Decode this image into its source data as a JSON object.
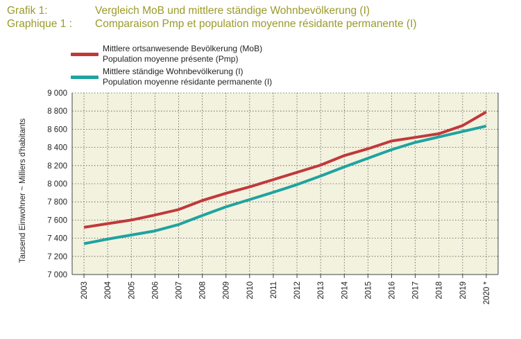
{
  "title": {
    "de_number": "Grafik 1:",
    "de_text": "Vergleich MoB und mittlere ständige Wohnbevölkerung (I)",
    "fr_number": "Graphique 1 :",
    "fr_text": "Comparaison Pmp et population moyenne résidante permanente (I)"
  },
  "chart_data": {
    "type": "line",
    "categories": [
      "2003",
      "2004",
      "2005",
      "2006",
      "2007",
      "2008",
      "2009",
      "2010",
      "2011",
      "2012",
      "2013",
      "2014",
      "2015",
      "2016",
      "2017",
      "2018",
      "2019",
      "2020 *"
    ],
    "series": [
      {
        "name_line1": "Mittlere ortsanwesende Bevölkerung (MoB)",
        "name_line2": "Population moyenne présente (Pmp)",
        "color": "#c0393b",
        "values": [
          7520,
          7560,
          7600,
          7655,
          7715,
          7815,
          7895,
          7965,
          8045,
          8125,
          8205,
          8310,
          8385,
          8470,
          8510,
          8550,
          8640,
          8790
        ]
      },
      {
        "name_line1": "Mittlere ständige Wohnbevölkerung (I)",
        "name_line2": "Population moyenne résidante permanente (I)",
        "color": "#1fa3a0",
        "values": [
          7340,
          7390,
          7435,
          7480,
          7550,
          7650,
          7745,
          7825,
          7905,
          7990,
          8085,
          8185,
          8280,
          8375,
          8455,
          8515,
          8575,
          8635
        ]
      }
    ],
    "ylabel": "Tausend Einwohner  ~  Milliers d'habitants",
    "ylim": [
      7000,
      9000
    ],
    "yticks": [
      7000,
      7200,
      7400,
      7600,
      7800,
      8000,
      8200,
      8400,
      8600,
      8800,
      9000
    ],
    "ytick_labels": [
      "7 000",
      "7 200",
      "7 400",
      "7 600",
      "7 800",
      "8 000",
      "8 200",
      "8 400",
      "8 600",
      "8 800",
      "9 000"
    ],
    "grid": true,
    "plot_background": "#f3f2df",
    "grid_color": "#555555"
  }
}
